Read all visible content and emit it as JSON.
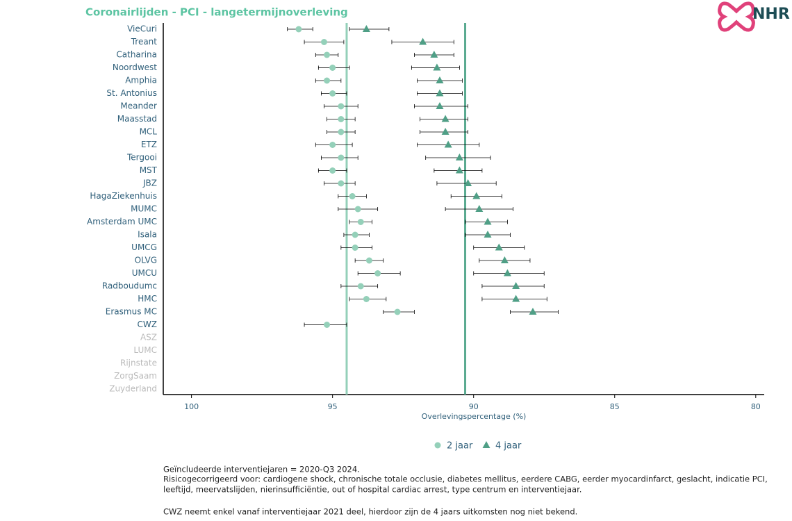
{
  "chart_data": {
    "type": "dot_errorbar",
    "title": "Coronairlijden - PCI -  langetermijnoverleving",
    "logo": "NHR",
    "xlabel": "Overlevingspercentage (%)",
    "categories": [
      "VieCuri",
      "Treant",
      "Catharina",
      "Noordwest",
      "Amphia",
      "St. Antonius",
      "Meander",
      "Maasstad",
      "MCL",
      "ETZ",
      "Tergooi",
      "MST",
      "JBZ",
      "HagaZiekenhuis",
      "MUMC",
      "Amsterdam UMC",
      "Isala",
      "UMCG",
      "OLVG",
      "UMCU",
      "Radboudumc",
      "HMC",
      "Erasmus MC",
      "CWZ",
      "ASZ",
      "LUMC",
      "Rijnstate",
      "ZorgSaam",
      "Zuyderland"
    ],
    "series": [
      {
        "name": "2 jaar",
        "marker": "circle",
        "color": "#94d0b9",
        "values": [
          96.2,
          95.3,
          95.2,
          95.0,
          95.2,
          95.0,
          94.7,
          94.7,
          94.7,
          95.0,
          94.7,
          95.0,
          94.7,
          94.3,
          94.1,
          94.0,
          94.2,
          94.2,
          93.7,
          93.4,
          94.0,
          93.8,
          92.7,
          95.2,
          null,
          null,
          null,
          null,
          null
        ],
        "ci_low": [
          95.7,
          94.6,
          94.8,
          94.4,
          94.7,
          94.5,
          94.1,
          94.2,
          94.2,
          94.3,
          94.1,
          94.5,
          94.2,
          93.8,
          93.4,
          93.6,
          93.7,
          93.6,
          93.2,
          92.6,
          93.4,
          93.1,
          92.1,
          94.5,
          null,
          null,
          null,
          null,
          null
        ],
        "ci_high": [
          96.6,
          96.0,
          95.6,
          95.5,
          95.6,
          95.4,
          95.3,
          95.2,
          95.2,
          95.6,
          95.4,
          95.5,
          95.3,
          94.8,
          94.8,
          94.4,
          94.6,
          94.7,
          94.2,
          94.1,
          94.7,
          94.4,
          93.2,
          96.0,
          null,
          null,
          null,
          null,
          null
        ]
      },
      {
        "name": "4 jaar",
        "marker": "triangle",
        "color": "#4f9f86",
        "values": [
          93.8,
          91.8,
          91.4,
          91.3,
          91.2,
          91.2,
          91.2,
          91.0,
          91.0,
          90.9,
          90.5,
          90.5,
          90.2,
          89.9,
          89.8,
          89.5,
          89.5,
          89.1,
          88.9,
          88.8,
          88.5,
          88.5,
          87.9,
          null,
          null,
          null,
          null,
          null,
          null
        ],
        "ci_low": [
          93.0,
          90.7,
          90.7,
          90.5,
          90.4,
          90.4,
          90.2,
          90.2,
          90.2,
          89.8,
          89.4,
          89.7,
          89.2,
          89.0,
          88.6,
          88.8,
          88.7,
          88.2,
          88.0,
          87.5,
          87.5,
          87.4,
          87.0,
          null,
          null,
          null,
          null,
          null,
          null
        ],
        "ci_high": [
          94.4,
          92.9,
          92.1,
          92.2,
          92.0,
          92.0,
          92.1,
          91.9,
          91.9,
          92.0,
          91.7,
          91.4,
          91.3,
          90.8,
          91.0,
          90.3,
          90.3,
          90.0,
          89.8,
          90.0,
          89.7,
          89.7,
          88.7,
          null,
          null,
          null,
          null,
          null,
          null
        ]
      }
    ],
    "reference_lines": [
      {
        "value": 94.5,
        "color": "#94d0b9"
      },
      {
        "value": 90.3,
        "color": "#5aaa90"
      }
    ],
    "xlim": [
      101,
      79.7
    ],
    "xticks": [
      100,
      95,
      90,
      85,
      80
    ],
    "footnotes": [
      "Geïncludeerde interventiejaren = 2020-Q3 2024.",
      "Risicogecorrigeerd voor: cardiogene shock, chronische totale occlusie, diabetes mellitus, eerdere CABG, eerder myocardinfarct, geslacht, indicatie PCI,",
      "leeftijd, meervatslijden, nierinsufficiëntie, out of hospital cardiac arrest, type centrum en interventiejaar.",
      "CWZ neemt enkel vanaf interventiejaar 2021 deel, hierdoor zijn de 4 jaars uitkomsten nog niet bekend."
    ]
  }
}
